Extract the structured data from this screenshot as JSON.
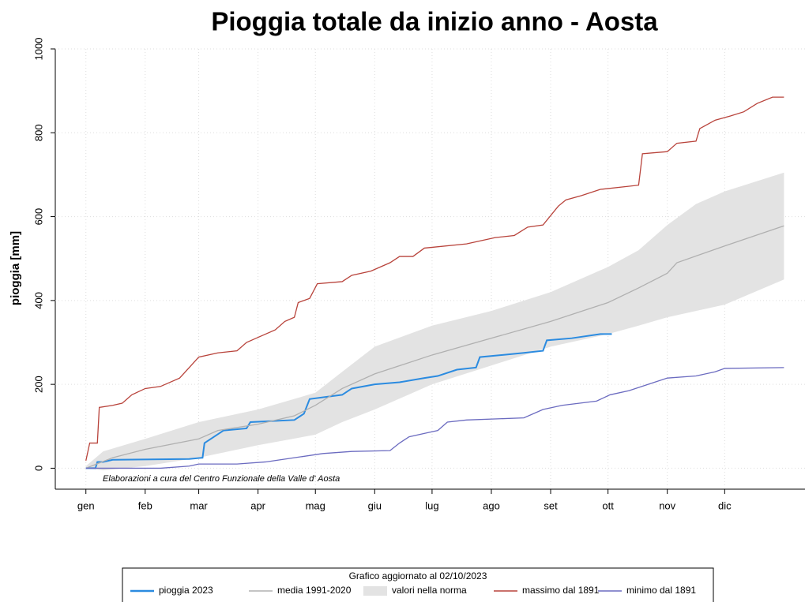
{
  "chart_data": {
    "type": "line",
    "title": "Pioggia totale da inizio anno - Aosta",
    "y_label": "pioggia [mm]",
    "annotation": "Elaborazioni a cura del Centro Funzionale della Valle d' Aosta",
    "legend_title": "Grafico aggiornato al 02/10/2023",
    "legend": "bottom",
    "grid": true,
    "xlim": [
      -15,
      377
    ],
    "xticks": [
      {
        "value": 1,
        "label": "gen"
      },
      {
        "value": 32,
        "label": "feb"
      },
      {
        "value": 60,
        "label": "mar"
      },
      {
        "value": 91,
        "label": "apr"
      },
      {
        "value": 121,
        "label": "mag"
      },
      {
        "value": 152,
        "label": "giu"
      },
      {
        "value": 182,
        "label": "lug"
      },
      {
        "value": 213,
        "label": "ago"
      },
      {
        "value": 244,
        "label": "set"
      },
      {
        "value": 274,
        "label": "ott"
      },
      {
        "value": 305,
        "label": "nov"
      },
      {
        "value": 335,
        "label": "dic"
      }
    ],
    "ylim": [
      -50,
      1000
    ],
    "yticks": [
      0,
      200,
      400,
      600,
      800,
      1000
    ],
    "series": [
      {
        "name": "pioggia 2023",
        "color": "#2b8be0",
        "x": [
          1,
          6,
          7,
          10,
          15,
          55,
          62,
          63,
          68,
          73,
          85,
          87,
          110,
          115,
          118,
          135,
          140,
          152,
          165,
          178,
          185,
          195,
          205,
          207,
          230,
          240,
          242,
          255,
          270,
          276
        ],
        "values": [
          0,
          0,
          15,
          15,
          20,
          22,
          25,
          60,
          75,
          90,
          95,
          110,
          115,
          130,
          165,
          175,
          190,
          200,
          205,
          215,
          220,
          235,
          240,
          265,
          275,
          280,
          305,
          310,
          320,
          320
        ]
      },
      {
        "name": "media 1991-2020",
        "color": "#b0b0b0",
        "x": [
          1,
          15,
          32,
          60,
          70,
          91,
          110,
          121,
          135,
          152,
          182,
          213,
          244,
          274,
          290,
          305,
          310,
          335,
          366
        ],
        "values": [
          0,
          25,
          45,
          70,
          90,
          105,
          125,
          150,
          190,
          225,
          270,
          310,
          350,
          395,
          430,
          465,
          490,
          530,
          578
        ]
      },
      {
        "name": "valori nella norma",
        "color": "#e3e3e3",
        "x": [
          1,
          10,
          32,
          60,
          91,
          121,
          135,
          152,
          182,
          213,
          244,
          274,
          290,
          305,
          320,
          335,
          366
        ],
        "lower": [
          0,
          -5,
          5,
          25,
          55,
          80,
          110,
          140,
          200,
          245,
          290,
          320,
          340,
          360,
          375,
          390,
          450
        ],
        "upper": [
          5,
          40,
          70,
          110,
          140,
          180,
          230,
          290,
          340,
          375,
          420,
          480,
          520,
          580,
          630,
          660,
          705
        ]
      },
      {
        "name": "massimo dal 1891",
        "color": "#b8433b",
        "x": [
          1,
          3,
          7,
          8,
          15,
          20,
          25,
          32,
          40,
          50,
          55,
          60,
          70,
          80,
          85,
          90,
          100,
          105,
          110,
          112,
          118,
          122,
          135,
          140,
          150,
          160,
          165,
          172,
          178,
          200,
          215,
          225,
          232,
          240,
          248,
          252,
          260,
          270,
          290,
          292,
          305,
          310,
          320,
          322,
          330,
          338,
          345,
          352,
          360,
          366
        ],
        "values": [
          18,
          60,
          60,
          145,
          150,
          155,
          175,
          190,
          195,
          215,
          240,
          265,
          275,
          280,
          300,
          310,
          330,
          350,
          360,
          395,
          405,
          440,
          445,
          460,
          470,
          490,
          505,
          505,
          525,
          535,
          550,
          555,
          575,
          580,
          625,
          640,
          650,
          665,
          675,
          750,
          755,
          775,
          780,
          810,
          830,
          840,
          850,
          870,
          885,
          885
        ]
      },
      {
        "name": "minimo dal 1891",
        "color": "#6b6bc0",
        "x": [
          1,
          40,
          55,
          60,
          80,
          95,
          110,
          125,
          140,
          160,
          165,
          170,
          180,
          185,
          190,
          200,
          230,
          240,
          250,
          268,
          275,
          285,
          295,
          305,
          320,
          330,
          335,
          366
        ],
        "values": [
          0,
          0,
          5,
          10,
          10,
          15,
          25,
          35,
          40,
          42,
          60,
          75,
          85,
          90,
          110,
          115,
          120,
          140,
          150,
          160,
          175,
          185,
          200,
          215,
          220,
          230,
          238,
          240
        ]
      }
    ]
  }
}
